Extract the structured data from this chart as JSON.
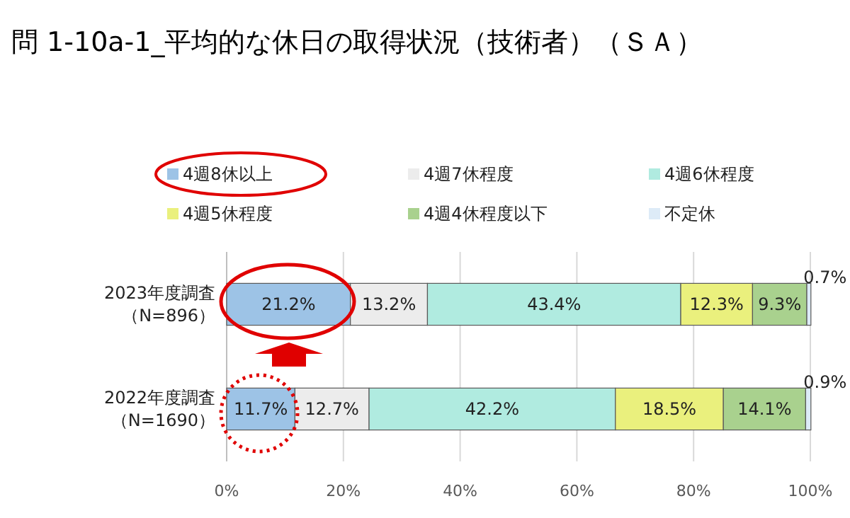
{
  "chart_data": {
    "type": "bar",
    "orientation": "horizontal",
    "stacked": true,
    "title": "問 1-10a-1_平均的な休日の取得状況（技術者）（ＳＡ）",
    "categories": [
      "2023年度調査（N=896）",
      "2022年度調査（N=1690）"
    ],
    "series": [
      {
        "name": "4週8休以上",
        "color": "#9dc3e6",
        "values": [
          21.2,
          11.7
        ],
        "value_labels": [
          "21.2%",
          "11.7%"
        ]
      },
      {
        "name": "4週7休程度",
        "color": "#ececec",
        "values": [
          13.2,
          12.7
        ],
        "value_labels": [
          "13.2%",
          "12.7%"
        ]
      },
      {
        "name": "4週6休程度",
        "color": "#b0ebe0",
        "values": [
          43.4,
          42.2
        ],
        "value_labels": [
          "43.4%",
          "42.2%"
        ]
      },
      {
        "name": "4週5休程度",
        "color": "#eaf07d",
        "values": [
          12.3,
          18.5
        ],
        "value_labels": [
          "12.3%",
          "18.5%"
        ]
      },
      {
        "name": "4週4休程度以下",
        "color": "#a9d18e",
        "values": [
          9.3,
          14.1
        ],
        "value_labels": [
          "9.3%",
          "14.1%"
        ]
      },
      {
        "name": "不定休",
        "color": "#ddebf7",
        "values": [
          0.7,
          0.9
        ],
        "value_labels": [
          "0.7%",
          "0.9%"
        ]
      }
    ],
    "xlim": [
      0,
      100
    ],
    "xticks": [
      {
        "value": 0,
        "label": "0%"
      },
      {
        "value": 20,
        "label": "20%"
      },
      {
        "value": 40,
        "label": "40%"
      },
      {
        "value": 60,
        "label": "60%"
      },
      {
        "value": 80,
        "label": "80%"
      },
      {
        "value": 100,
        "label": "100%"
      }
    ],
    "grid": "x",
    "legend": "top"
  }
}
